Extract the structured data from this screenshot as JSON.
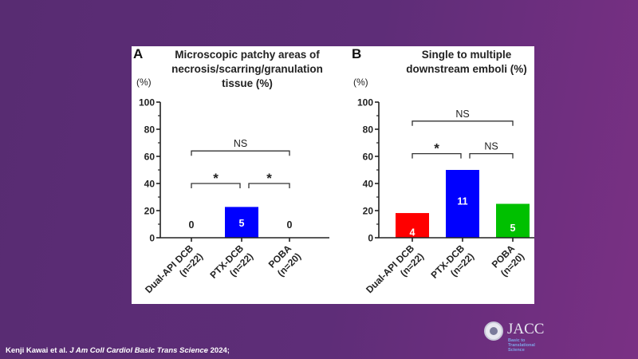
{
  "chart_data": [
    {
      "type": "bar",
      "panel_label": "A",
      "title": [
        "Microscopic patchy areas of",
        "necrosis/scarring/granulation",
        "tissue (%)"
      ],
      "ylabel": "(%)",
      "ylim": [
        0,
        100
      ],
      "yticks": [
        0,
        20,
        40,
        60,
        80,
        100
      ],
      "categories": [
        [
          "Dual-API DCB",
          "(n=22)"
        ],
        [
          "PTX-DCB",
          "(n=22)"
        ],
        [
          "POBA",
          "(n=20)"
        ]
      ],
      "values": [
        0,
        22.7,
        0
      ],
      "counts": [
        "0",
        "5",
        "0"
      ],
      "colors": [
        "#ff0000",
        "#0000ff",
        "#00c000"
      ],
      "significance": [
        {
          "from": 0,
          "to": 2,
          "label": "NS",
          "y": 64
        },
        {
          "from": 0,
          "to": 1,
          "label": "*",
          "y": 40
        },
        {
          "from": 1,
          "to": 2,
          "label": "*",
          "y": 40
        }
      ]
    },
    {
      "type": "bar",
      "panel_label": "B",
      "title": [
        "Single to multiple",
        "downstream emboli (%)"
      ],
      "ylabel": "(%)",
      "ylim": [
        0,
        100
      ],
      "yticks": [
        0,
        20,
        40,
        60,
        80,
        100
      ],
      "categories": [
        [
          "Dual-API DCB",
          "(n=22)"
        ],
        [
          "PTX-DCB",
          "(n=22)"
        ],
        [
          "POBA",
          "(n=20)"
        ]
      ],
      "values": [
        18.2,
        50.0,
        25.0
      ],
      "counts": [
        "4",
        "11",
        "5"
      ],
      "colors": [
        "#ff0000",
        "#0000ff",
        "#00c000"
      ],
      "significance": [
        {
          "from": 0,
          "to": 2,
          "label": "NS",
          "y": 86
        },
        {
          "from": 0,
          "to": 1,
          "label": "*",
          "y": 62
        },
        {
          "from": 1,
          "to": 2,
          "label": "NS",
          "y": 62
        }
      ]
    }
  ],
  "footer": {
    "authors": "Kenji Kawai et al.",
    "journal": "J Am Coll Cardiol Basic Trans Science",
    "year": "2024;"
  },
  "logo": {
    "name": "JACC",
    "subtitle": [
      "Basic to",
      "Translational",
      "Science"
    ]
  }
}
